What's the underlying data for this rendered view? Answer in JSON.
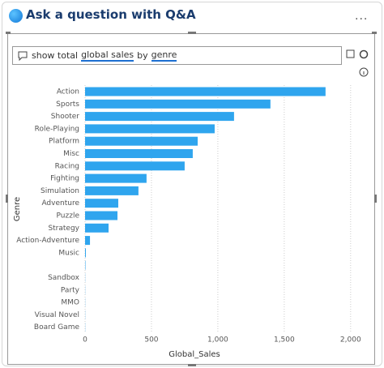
{
  "header": {
    "title": "Ask a question with Q&A"
  },
  "query": [
    {
      "text": "show total",
      "underline": false
    },
    {
      "text": "global sales",
      "underline": true
    },
    {
      "text": "by",
      "underline": false
    },
    {
      "text": "genre",
      "underline": true
    }
  ],
  "chart_data": {
    "type": "bar",
    "orientation": "horizontal",
    "categories": [
      "Action",
      "Sports",
      "Shooter",
      "Role-Playing",
      "Platform",
      "Misc",
      "Racing",
      "Fighting",
      "Simulation",
      "Adventure",
      "Puzzle",
      "Strategy",
      "Action-Adventure",
      "Music",
      null,
      "Sandbox",
      "Party",
      "MMO",
      "Visual Novel",
      "Board Game"
    ],
    "values": [
      1811,
      1396,
      1122,
      976,
      848,
      811,
      750,
      463,
      402,
      250,
      244,
      177,
      37,
      6,
      3,
      1,
      1,
      1,
      1,
      1
    ],
    "color": "#2fa5ee",
    "xlim": [
      0,
      2050
    ],
    "xticks": [
      0,
      500,
      {
        "value": 1000,
        "label": "1,000"
      },
      {
        "value": 1500,
        "label": "1,500"
      },
      {
        "value": 2000,
        "label": "2,000"
      }
    ],
    "grid": true,
    "x_label": "Global_Sales",
    "y_label": "Genre"
  }
}
